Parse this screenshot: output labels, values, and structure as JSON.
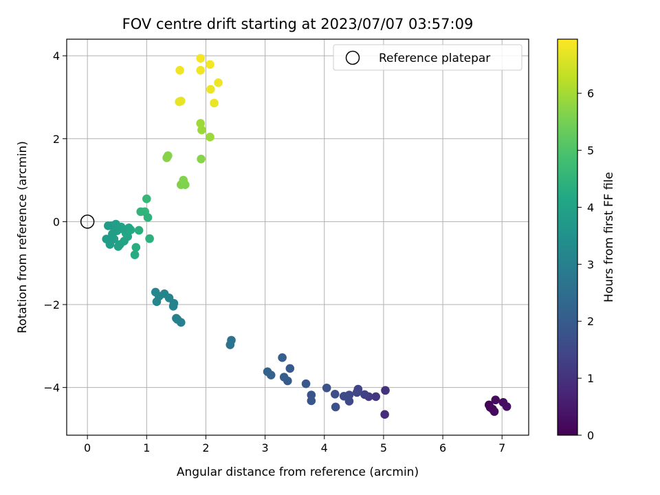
{
  "chart_data": {
    "type": "scatter",
    "title": "FOV centre drift starting at 2023/07/07 03:57:09",
    "xlabel": "Angular distance from reference (arcmin)",
    "ylabel": "Rotation from reference (arcmin)",
    "xlim": [
      -0.35,
      7.45
    ],
    "ylim": [
      -5.15,
      4.4
    ],
    "xticks": [
      0,
      1,
      2,
      3,
      4,
      5,
      6,
      7
    ],
    "yticks": [
      4,
      2,
      0,
      -2,
      -4
    ],
    "xtick_labels": [
      "0",
      "1",
      "2",
      "3",
      "4",
      "5",
      "6",
      "7"
    ],
    "ytick_labels": [
      "4",
      "2",
      "0",
      "−2",
      "−4"
    ],
    "grid": true,
    "colormap": "viridis",
    "colorbar": {
      "label": "Hours from first FF file",
      "range": [
        0,
        6.95
      ],
      "ticks": [
        0,
        1,
        2,
        3,
        4,
        5,
        6
      ],
      "tick_labels": [
        "0",
        "1",
        "2",
        "3",
        "4",
        "5",
        "6"
      ]
    },
    "legend": {
      "position": "top-right",
      "entries": [
        "Reference platepar"
      ]
    },
    "reference_point": {
      "x": 0,
      "y": 0,
      "label": "Reference platepar"
    },
    "points": [
      {
        "x": 6.78,
        "y": -4.42,
        "c": 0.05
      },
      {
        "x": 6.8,
        "y": -4.48,
        "c": 0.1
      },
      {
        "x": 6.84,
        "y": -4.52,
        "c": 0.12
      },
      {
        "x": 6.87,
        "y": -4.58,
        "c": 0.15
      },
      {
        "x": 6.89,
        "y": -4.3,
        "c": 0.2
      },
      {
        "x": 7.02,
        "y": -4.36,
        "c": 0.25
      },
      {
        "x": 7.08,
        "y": -4.46,
        "c": 0.3
      },
      {
        "x": 5.02,
        "y": -4.65,
        "c": 0.9
      },
      {
        "x": 5.03,
        "y": -4.07,
        "c": 1.0
      },
      {
        "x": 4.87,
        "y": -4.22,
        "c": 1.1
      },
      {
        "x": 4.75,
        "y": -4.22,
        "c": 1.2
      },
      {
        "x": 4.68,
        "y": -4.17,
        "c": 1.3
      },
      {
        "x": 4.57,
        "y": -4.04,
        "c": 1.4
      },
      {
        "x": 4.55,
        "y": -4.12,
        "c": 1.45
      },
      {
        "x": 4.42,
        "y": -4.18,
        "c": 1.5
      },
      {
        "x": 4.42,
        "y": -4.33,
        "c": 1.55
      },
      {
        "x": 4.33,
        "y": -4.21,
        "c": 1.6
      },
      {
        "x": 4.18,
        "y": -4.16,
        "c": 1.65
      },
      {
        "x": 4.19,
        "y": -4.47,
        "c": 1.7
      },
      {
        "x": 4.04,
        "y": -4.01,
        "c": 1.75
      },
      {
        "x": 3.78,
        "y": -4.18,
        "c": 1.8
      },
      {
        "x": 3.78,
        "y": -4.32,
        "c": 1.85
      },
      {
        "x": 3.69,
        "y": -3.91,
        "c": 1.9
      },
      {
        "x": 3.42,
        "y": -3.54,
        "c": 1.95
      },
      {
        "x": 3.38,
        "y": -3.84,
        "c": 2.0
      },
      {
        "x": 3.32,
        "y": -3.75,
        "c": 2.05
      },
      {
        "x": 3.29,
        "y": -3.28,
        "c": 2.1
      },
      {
        "x": 3.1,
        "y": -3.7,
        "c": 2.15
      },
      {
        "x": 3.04,
        "y": -3.62,
        "c": 2.2
      },
      {
        "x": 2.43,
        "y": -2.86,
        "c": 2.6
      },
      {
        "x": 2.41,
        "y": -2.97,
        "c": 2.65
      },
      {
        "x": 1.58,
        "y": -2.43,
        "c": 3.0
      },
      {
        "x": 1.52,
        "y": -2.36,
        "c": 3.02
      },
      {
        "x": 1.5,
        "y": -2.33,
        "c": 3.04
      },
      {
        "x": 1.46,
        "y": -1.97,
        "c": 3.06
      },
      {
        "x": 1.45,
        "y": -2.04,
        "c": 3.08
      },
      {
        "x": 1.38,
        "y": -1.84,
        "c": 3.1
      },
      {
        "x": 1.3,
        "y": -1.74,
        "c": 3.12
      },
      {
        "x": 1.21,
        "y": -1.8,
        "c": 3.14
      },
      {
        "x": 1.17,
        "y": -1.93,
        "c": 3.16
      },
      {
        "x": 1.15,
        "y": -1.7,
        "c": 3.18
      },
      {
        "x": 1.0,
        "y": 0.55,
        "c": 4.6
      },
      {
        "x": 0.97,
        "y": 0.24,
        "c": 4.55
      },
      {
        "x": 0.9,
        "y": 0.24,
        "c": 4.5
      },
      {
        "x": 1.02,
        "y": 0.1,
        "c": 4.45
      },
      {
        "x": 1.05,
        "y": -0.41,
        "c": 4.4
      },
      {
        "x": 0.87,
        "y": -0.21,
        "c": 4.35
      },
      {
        "x": 0.82,
        "y": -0.62,
        "c": 4.3
      },
      {
        "x": 0.8,
        "y": -0.8,
        "c": 4.25
      },
      {
        "x": 0.73,
        "y": -0.2,
        "c": 4.2
      },
      {
        "x": 0.7,
        "y": -0.15,
        "c": 4.15
      },
      {
        "x": 0.68,
        "y": -0.36,
        "c": 4.12
      },
      {
        "x": 0.65,
        "y": -0.28,
        "c": 4.1
      },
      {
        "x": 0.62,
        "y": -0.47,
        "c": 4.05
      },
      {
        "x": 0.6,
        "y": -0.18,
        "c": 4.02
      },
      {
        "x": 0.57,
        "y": -0.13,
        "c": 4.0
      },
      {
        "x": 0.55,
        "y": -0.55,
        "c": 3.98
      },
      {
        "x": 0.52,
        "y": -0.6,
        "c": 3.96
      },
      {
        "x": 0.5,
        "y": -0.22,
        "c": 3.94
      },
      {
        "x": 0.48,
        "y": -0.06,
        "c": 3.92
      },
      {
        "x": 0.45,
        "y": -0.42,
        "c": 3.9
      },
      {
        "x": 0.42,
        "y": -0.3,
        "c": 3.88
      },
      {
        "x": 0.4,
        "y": -0.1,
        "c": 3.86
      },
      {
        "x": 0.38,
        "y": -0.55,
        "c": 3.84
      },
      {
        "x": 0.35,
        "y": -0.1,
        "c": 3.82
      },
      {
        "x": 0.32,
        "y": -0.42,
        "c": 3.8
      },
      {
        "x": 1.65,
        "y": 0.89,
        "c": 5.6
      },
      {
        "x": 1.58,
        "y": 0.89,
        "c": 5.62
      },
      {
        "x": 1.62,
        "y": 1.0,
        "c": 5.64
      },
      {
        "x": 1.36,
        "y": 1.59,
        "c": 5.66
      },
      {
        "x": 1.34,
        "y": 1.54,
        "c": 5.68
      },
      {
        "x": 1.92,
        "y": 1.51,
        "c": 5.7
      },
      {
        "x": 2.07,
        "y": 2.04,
        "c": 5.9
      },
      {
        "x": 1.93,
        "y": 2.21,
        "c": 5.92
      },
      {
        "x": 1.91,
        "y": 2.37,
        "c": 5.94
      },
      {
        "x": 1.55,
        "y": 2.89,
        "c": 6.7
      },
      {
        "x": 1.58,
        "y": 2.91,
        "c": 6.72
      },
      {
        "x": 2.14,
        "y": 2.86,
        "c": 6.74
      },
      {
        "x": 2.08,
        "y": 3.19,
        "c": 6.76
      },
      {
        "x": 2.21,
        "y": 3.35,
        "c": 6.78
      },
      {
        "x": 1.56,
        "y": 3.65,
        "c": 6.8
      },
      {
        "x": 1.91,
        "y": 3.65,
        "c": 6.82
      },
      {
        "x": 2.07,
        "y": 3.79,
        "c": 6.84
      },
      {
        "x": 1.91,
        "y": 3.94,
        "c": 6.86
      }
    ]
  }
}
